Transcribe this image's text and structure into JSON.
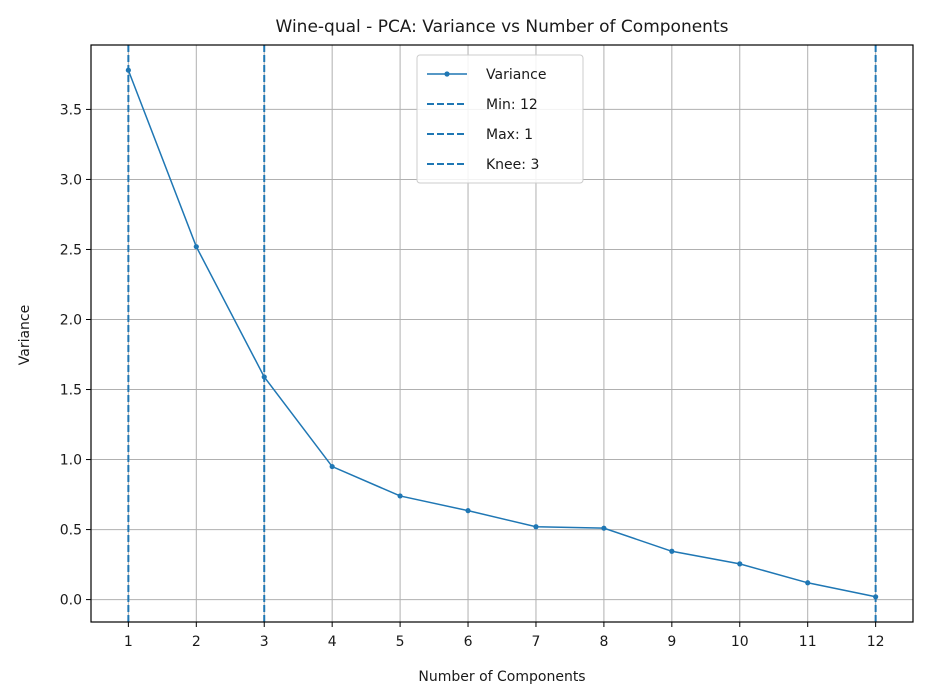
{
  "chart_data": {
    "type": "line",
    "title": "Wine-qual - PCA: Variance vs Number of Components",
    "xlabel": "Number of Components",
    "ylabel": "Variance",
    "xlim": [
      0.45,
      12.55
    ],
    "ylim": [
      -0.16,
      3.96
    ],
    "x_ticks": [
      1,
      2,
      3,
      4,
      5,
      6,
      7,
      8,
      9,
      10,
      11,
      12
    ],
    "y_ticks": [
      0.0,
      0.5,
      1.0,
      1.5,
      2.0,
      2.5,
      3.0,
      3.5
    ],
    "y_tick_labels": [
      "0.0",
      "0.5",
      "1.0",
      "1.5",
      "2.0",
      "2.5",
      "3.0",
      "3.5"
    ],
    "grid": true,
    "legend_position": "top-center",
    "series": [
      {
        "name": "Variance",
        "x": [
          1,
          2,
          3,
          4,
          5,
          6,
          7,
          8,
          9,
          10,
          11,
          12
        ],
        "values": [
          3.78,
          2.52,
          1.59,
          0.95,
          0.74,
          0.635,
          0.52,
          0.51,
          0.345,
          0.255,
          0.12,
          0.02
        ],
        "color": "#1f77b4",
        "marker": "point"
      }
    ],
    "vlines": [
      {
        "name": "Min: 12",
        "x": 12,
        "color": "#1f77b4",
        "style": "dashed"
      },
      {
        "name": "Max: 1",
        "x": 1,
        "color": "#1f77b4",
        "style": "dashed"
      },
      {
        "name": "Knee: 3",
        "x": 3,
        "color": "#1f77b4",
        "style": "dashed"
      }
    ],
    "colors": {
      "grid": "#b0b0b0",
      "axes": "#000000"
    }
  }
}
